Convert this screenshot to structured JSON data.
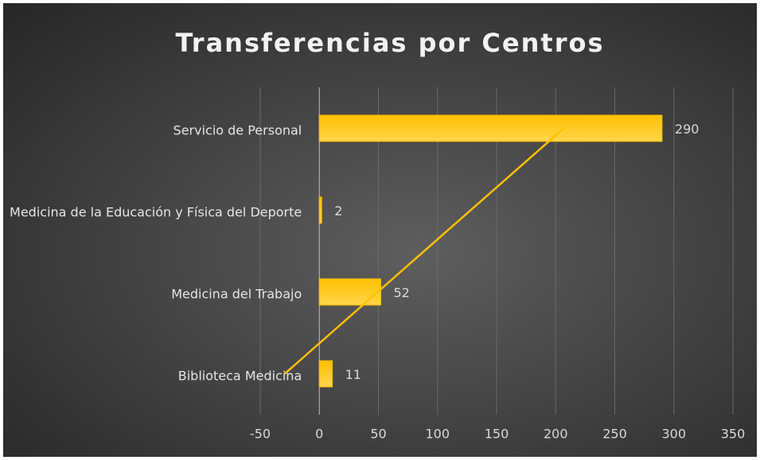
{
  "chart_data": {
    "type": "hbar",
    "title": "Transferencias por Centros",
    "categories": [
      "Servicio de Personal",
      "Medicina de la Educación y Física del Deporte",
      "Medicina del Trabajo",
      "Biblioteca Medicina"
    ],
    "values": [
      290,
      2,
      52,
      11
    ],
    "color": "#ffc000",
    "xlim": [
      -50,
      350
    ],
    "xticks": [
      -50,
      0,
      50,
      100,
      150,
      200,
      250,
      300,
      350
    ],
    "grid": true,
    "trendline": "linear",
    "trendline_color": "#ffc000"
  }
}
